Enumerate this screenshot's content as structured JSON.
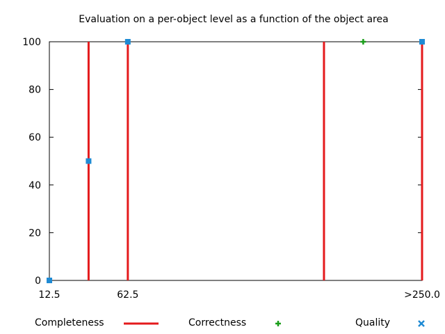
{
  "chart_data": {
    "type": "line",
    "title": "Evaluation on a per-object level as a function of the object area",
    "xlabel": "",
    "ylabel": "",
    "xlim": [
      12.5,
      250.0
    ],
    "ylim": [
      0,
      100
    ],
    "yticks": [
      0,
      20,
      40,
      60,
      80,
      100
    ],
    "xticks": [
      {
        "value": 12.5,
        "label": "12.5"
      },
      {
        "value": 62.5,
        "label": "62.5"
      },
      {
        "value": 250.0,
        "label": ">250.0"
      }
    ],
    "grid": false,
    "legend_position": "bottom",
    "series": [
      {
        "name": "Completeness",
        "style": "impulses",
        "color": "#e41a1c",
        "x": [
          37.5,
          62.5,
          187.5,
          250.0
        ],
        "y": [
          100,
          100,
          100,
          100
        ]
      },
      {
        "name": "Correctness",
        "style": "points",
        "marker": "plus",
        "color": "#1a9e1a",
        "x": [
          212.5
        ],
        "y": [
          100
        ]
      },
      {
        "name": "Quality",
        "style": "points",
        "marker": "cross",
        "color": "#1f8bd4",
        "x": [
          12.5,
          37.5,
          62.5,
          250.0
        ],
        "y": [
          0,
          50,
          100,
          100
        ]
      }
    ]
  }
}
